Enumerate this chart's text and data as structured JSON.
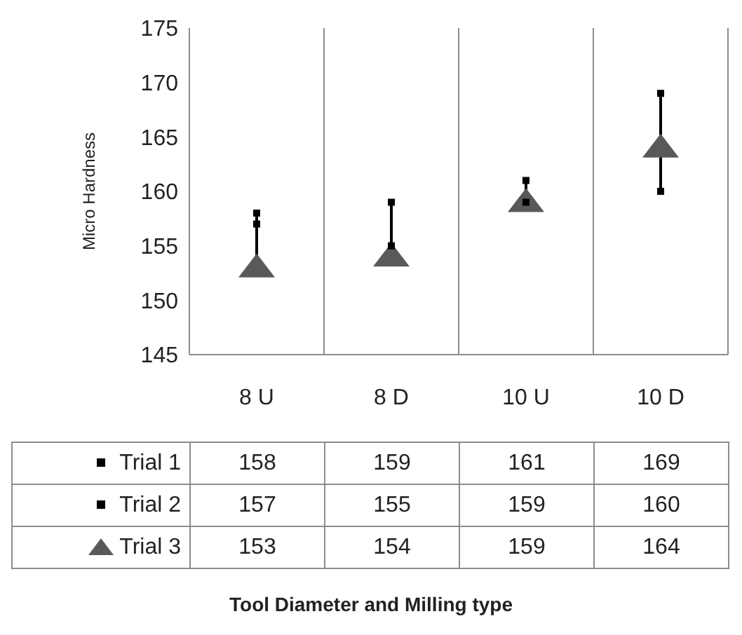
{
  "chart_data": {
    "type": "scatter",
    "annotations": [
      "Tool Diameter and Milling type"
    ],
    "ylabel": "Micro Hardness",
    "categories": [
      "8 U",
      "8 D",
      "10 U",
      "10 D"
    ],
    "series": [
      {
        "name": "Trial 1",
        "color": "#000000",
        "marker": "square",
        "values": [
          158,
          159,
          161,
          169
        ]
      },
      {
        "name": "Trial 2",
        "color": "#000000",
        "marker": "square",
        "values": [
          157,
          155,
          159,
          160
        ]
      },
      {
        "name": "Trial 3",
        "color": "#595959",
        "marker": "triangle",
        "values": [
          153,
          154,
          159,
          164
        ]
      }
    ],
    "ylim": [
      145,
      175
    ],
    "yticks": [
      145,
      150,
      155,
      160,
      165,
      170,
      175
    ],
    "grid": "x",
    "legend": "bottom",
    "data_labels": true
  }
}
